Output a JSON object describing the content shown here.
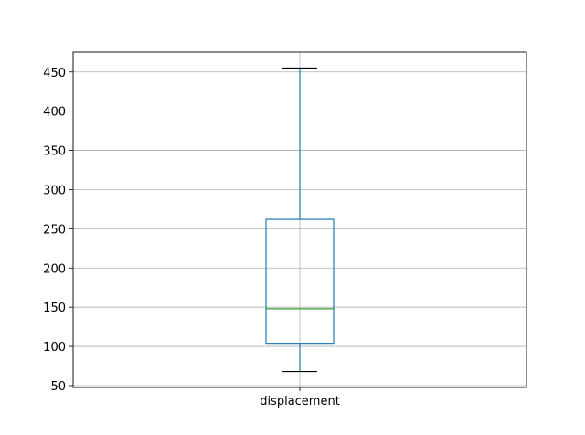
{
  "chart_data": {
    "type": "box",
    "categories": [
      "displacement"
    ],
    "series": [
      {
        "whisker_low": 68,
        "q1": 104,
        "median": 148,
        "q3": 262,
        "whisker_high": 455
      }
    ],
    "title": "",
    "xlabel": "",
    "ylabel": "",
    "ylim": [
      47.65,
      475.35
    ],
    "yticks": [
      50,
      100,
      150,
      200,
      250,
      300,
      350,
      400,
      450
    ],
    "grid": true,
    "colors": {
      "box": "#1f77b4",
      "median": "#2ca02c",
      "whisker": "#1f77b4",
      "cap": "#000000",
      "grid": "#b0b0b0",
      "axes": "#000000"
    }
  }
}
